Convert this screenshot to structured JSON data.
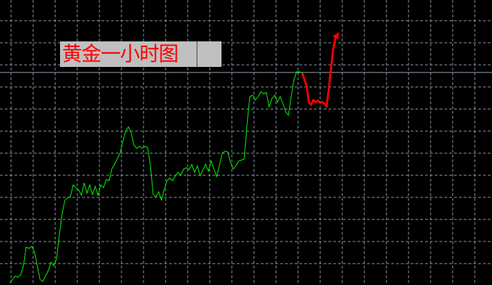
{
  "chart_data": {
    "type": "line",
    "title": "",
    "annotation": "黄金一小时图",
    "xlabel": "",
    "ylabel": "",
    "grid": true,
    "x_index_step": 1,
    "ylim": [
      0,
      413
    ],
    "reference_line_value": 308,
    "colors": {
      "background": "#000000",
      "grid": "#8c9bb0",
      "history": "#00ff00",
      "forecast": "#ff0000",
      "reference": "#a0a8b4",
      "label_bg": "#c0c0c0",
      "label_text": "#ff0000"
    },
    "series": [
      {
        "role": "history",
        "values": [
          3,
          8,
          13,
          11,
          15,
          28,
          55,
          53,
          56,
          48,
          28,
          8,
          5,
          13,
          21,
          33,
          28,
          38,
          73,
          103,
          123,
          126,
          128,
          145,
          141,
          138,
          130,
          148,
          133,
          145,
          131,
          143,
          130,
          145,
          141,
          153,
          151,
          168,
          175,
          183,
          191,
          208,
          223,
          229,
          221,
          203,
          198,
          201,
          198,
          201,
          199,
          173,
          131,
          128,
          135,
          123,
          138,
          151,
          155,
          151,
          158,
          163,
          159,
          168,
          170,
          167,
          175,
          163,
          173,
          158,
          167,
          175,
          165,
          180,
          168,
          157,
          173,
          191,
          194,
          193,
          178,
          168,
          173,
          180,
          181,
          183,
          233,
          273,
          275,
          268,
          273,
          280,
          277,
          279,
          258,
          270,
          275,
          265,
          273,
          263,
          251,
          246,
          273,
          298,
          309,
          309,
          307
        ]
      },
      {
        "role": "forecast",
        "values": [
          307,
          298,
          288,
          265,
          261,
          268,
          265,
          267,
          265,
          265,
          263,
          258,
          283,
          313,
          341,
          358,
          363
        ]
      }
    ]
  }
}
